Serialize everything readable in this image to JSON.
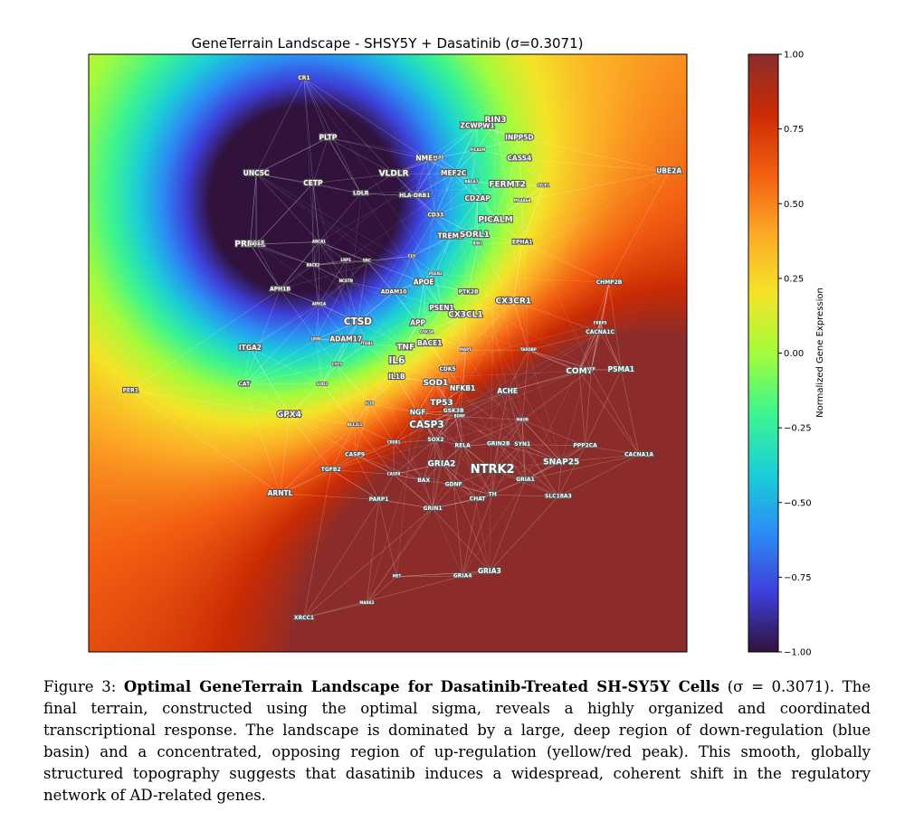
{
  "chart_data": {
    "type": "heatmap",
    "title": "GeneTerrain Landscape - SHSY5Y + Dasatinib (σ=0.3071)",
    "colorbar": {
      "label": "Normalized Gene Expression",
      "range": [
        -1.0,
        1.0
      ],
      "ticks": [
        "1.00",
        "0.75",
        "0.50",
        "0.25",
        "0.00",
        "−0.25",
        "−0.50",
        "−0.75",
        "−1.00"
      ]
    },
    "colormap": [
      "#30123b",
      "#3e3fdb",
      "#2b8df4",
      "#1bd0d6",
      "#3ef58e",
      "#a3fc3c",
      "#f5e428",
      "#fcaa26",
      "#f35e12",
      "#c92b04",
      "#8b2c2b"
    ],
    "terrain": {
      "basin_center": [
        0.37,
        0.26
      ],
      "peak_center": [
        0.82,
        0.89
      ],
      "min_value": -1.0,
      "max_value": 1.0
    },
    "genes": [
      {
        "name": "CR1",
        "x": 0.36,
        "y": 0.04,
        "size": "xs"
      },
      {
        "name": "ZCWPW1",
        "x": 0.65,
        "y": 0.12,
        "size": "s"
      },
      {
        "name": "RIN3",
        "x": 0.68,
        "y": 0.11,
        "size": "m"
      },
      {
        "name": "INPP5D",
        "x": 0.72,
        "y": 0.14,
        "size": "s"
      },
      {
        "name": "PLTP",
        "x": 0.4,
        "y": 0.14,
        "size": "s"
      },
      {
        "name": "PICALM",
        "x": 0.65,
        "y": 0.16,
        "size": "xxs"
      },
      {
        "name": "CASS4",
        "x": 0.72,
        "y": 0.175,
        "size": "s"
      },
      {
        "name": "NME8",
        "x": 0.565,
        "y": 0.175,
        "size": "s"
      },
      {
        "name": "PLD3",
        "x": 0.585,
        "y": 0.173,
        "size": "xxs"
      },
      {
        "name": "UNC5C",
        "x": 0.28,
        "y": 0.2,
        "size": "s"
      },
      {
        "name": "VLDLR",
        "x": 0.51,
        "y": 0.2,
        "size": "m"
      },
      {
        "name": "MEF2C",
        "x": 0.61,
        "y": 0.2,
        "size": "s"
      },
      {
        "name": "ABCA7",
        "x": 0.64,
        "y": 0.213,
        "size": "xxs"
      },
      {
        "name": "FERMT2",
        "x": 0.7,
        "y": 0.218,
        "size": "m"
      },
      {
        "name": "CELF1",
        "x": 0.76,
        "y": 0.22,
        "size": "xxs"
      },
      {
        "name": "UBE2A",
        "x": 0.97,
        "y": 0.196,
        "size": "s"
      },
      {
        "name": "CETP",
        "x": 0.375,
        "y": 0.216,
        "size": "s"
      },
      {
        "name": "LDLR",
        "x": 0.455,
        "y": 0.233,
        "size": "xs"
      },
      {
        "name": "HLA-DRB1",
        "x": 0.545,
        "y": 0.237,
        "size": "xs"
      },
      {
        "name": "CD2AP",
        "x": 0.65,
        "y": 0.242,
        "size": "s"
      },
      {
        "name": "MS4A6A",
        "x": 0.725,
        "y": 0.245,
        "size": "xxs"
      },
      {
        "name": "CD33",
        "x": 0.58,
        "y": 0.269,
        "size": "xs"
      },
      {
        "name": "PICALM",
        "x": 0.68,
        "y": 0.277,
        "size": "m"
      },
      {
        "name": "TREM2",
        "x": 0.605,
        "y": 0.305,
        "size": "s"
      },
      {
        "name": "SORL1",
        "x": 0.645,
        "y": 0.302,
        "size": "m"
      },
      {
        "name": "BIN1",
        "x": 0.65,
        "y": 0.317,
        "size": "xxs"
      },
      {
        "name": "EPHA1",
        "x": 0.725,
        "y": 0.315,
        "size": "xs"
      },
      {
        "name": "PRDX1",
        "x": 0.27,
        "y": 0.318,
        "size": "m"
      },
      {
        "name": "ABCA1",
        "x": 0.28,
        "y": 0.318,
        "size": "xxs"
      },
      {
        "name": "ABCA1",
        "x": 0.385,
        "y": 0.314,
        "size": "xxs"
      },
      {
        "name": "CLU",
        "x": 0.54,
        "y": 0.338,
        "size": "xxs"
      },
      {
        "name": "BACE2",
        "x": 0.375,
        "y": 0.353,
        "size": "xxs"
      },
      {
        "name": "LRP1",
        "x": 0.43,
        "y": 0.345,
        "size": "xxs"
      },
      {
        "name": "SRC",
        "x": 0.465,
        "y": 0.346,
        "size": "xxs"
      },
      {
        "name": "PSEN2",
        "x": 0.58,
        "y": 0.368,
        "size": "xxs"
      },
      {
        "name": "NCSTN",
        "x": 0.43,
        "y": 0.38,
        "size": "xxs"
      },
      {
        "name": "APOE",
        "x": 0.56,
        "y": 0.382,
        "size": "s"
      },
      {
        "name": "CHMP2B",
        "x": 0.87,
        "y": 0.382,
        "size": "xs"
      },
      {
        "name": "APH1B",
        "x": 0.32,
        "y": 0.393,
        "size": "xs"
      },
      {
        "name": "ADAM10",
        "x": 0.51,
        "y": 0.398,
        "size": "xs"
      },
      {
        "name": "PTK2B",
        "x": 0.635,
        "y": 0.398,
        "size": "xs"
      },
      {
        "name": "CX3CR1",
        "x": 0.71,
        "y": 0.413,
        "size": "m"
      },
      {
        "name": "APH1A",
        "x": 0.385,
        "y": 0.418,
        "size": "xxs"
      },
      {
        "name": "PSEN1",
        "x": 0.59,
        "y": 0.425,
        "size": "s"
      },
      {
        "name": "CX3CL1",
        "x": 0.63,
        "y": 0.436,
        "size": "m"
      },
      {
        "name": "CTSD",
        "x": 0.45,
        "y": 0.448,
        "size": "l"
      },
      {
        "name": "APP",
        "x": 0.55,
        "y": 0.45,
        "size": "s"
      },
      {
        "name": "FKBP5",
        "x": 0.855,
        "y": 0.45,
        "size": "xxs"
      },
      {
        "name": "CACNA1C",
        "x": 0.855,
        "y": 0.465,
        "size": "xs"
      },
      {
        "name": "GSK3A",
        "x": 0.565,
        "y": 0.465,
        "size": "xxs"
      },
      {
        "name": "LRP8",
        "x": 0.38,
        "y": 0.477,
        "size": "xxs"
      },
      {
        "name": "ADAM17",
        "x": 0.43,
        "y": 0.477,
        "size": "s"
      },
      {
        "name": "ITGB1",
        "x": 0.465,
        "y": 0.484,
        "size": "xxs"
      },
      {
        "name": "BACE1",
        "x": 0.57,
        "y": 0.484,
        "size": "s"
      },
      {
        "name": "ITGA2",
        "x": 0.27,
        "y": 0.492,
        "size": "s"
      },
      {
        "name": "TNF",
        "x": 0.53,
        "y": 0.49,
        "size": "m"
      },
      {
        "name": "MAPT",
        "x": 0.63,
        "y": 0.495,
        "size": "xxs"
      },
      {
        "name": "TARDBP",
        "x": 0.735,
        "y": 0.495,
        "size": "xxs"
      },
      {
        "name": "IL6",
        "x": 0.515,
        "y": 0.513,
        "size": "l"
      },
      {
        "name": "COMT",
        "x": 0.82,
        "y": 0.53,
        "size": "m"
      },
      {
        "name": "VCP",
        "x": 0.84,
        "y": 0.527,
        "size": "xxs"
      },
      {
        "name": "PSMA1",
        "x": 0.89,
        "y": 0.528,
        "size": "s"
      },
      {
        "name": "CDK5",
        "x": 0.6,
        "y": 0.527,
        "size": "xs"
      },
      {
        "name": "CYCS",
        "x": 0.415,
        "y": 0.52,
        "size": "xxs"
      },
      {
        "name": "IL1B",
        "x": 0.515,
        "y": 0.54,
        "size": "s"
      },
      {
        "name": "CAT",
        "x": 0.26,
        "y": 0.552,
        "size": "xs"
      },
      {
        "name": "SOD2",
        "x": 0.39,
        "y": 0.552,
        "size": "xxs"
      },
      {
        "name": "SOD1",
        "x": 0.58,
        "y": 0.55,
        "size": "m"
      },
      {
        "name": "NFKB1",
        "x": 0.625,
        "y": 0.56,
        "size": "s"
      },
      {
        "name": "PER1",
        "x": 0.07,
        "y": 0.563,
        "size": "xs"
      },
      {
        "name": "ACHE",
        "x": 0.7,
        "y": 0.564,
        "size": "s"
      },
      {
        "name": "TP53",
        "x": 0.59,
        "y": 0.583,
        "size": "m"
      },
      {
        "name": "IL10",
        "x": 0.47,
        "y": 0.585,
        "size": "xxs"
      },
      {
        "name": "GSK3B",
        "x": 0.61,
        "y": 0.597,
        "size": "xs"
      },
      {
        "name": "NGF",
        "x": 0.55,
        "y": 0.6,
        "size": "s"
      },
      {
        "name": "BDNF",
        "x": 0.62,
        "y": 0.606,
        "size": "xxs"
      },
      {
        "name": "GPX4",
        "x": 0.335,
        "y": 0.603,
        "size": "m"
      },
      {
        "name": "MAOB",
        "x": 0.725,
        "y": 0.612,
        "size": "xxs"
      },
      {
        "name": "BCL2L1",
        "x": 0.445,
        "y": 0.62,
        "size": "xxs"
      },
      {
        "name": "CASP3",
        "x": 0.565,
        "y": 0.62,
        "size": "l"
      },
      {
        "name": "SOX2",
        "x": 0.58,
        "y": 0.645,
        "size": "xs"
      },
      {
        "name": "CREB1",
        "x": 0.51,
        "y": 0.65,
        "size": "xxs"
      },
      {
        "name": "RELA",
        "x": 0.625,
        "y": 0.655,
        "size": "xs"
      },
      {
        "name": "GRIN2B",
        "x": 0.685,
        "y": 0.652,
        "size": "xs"
      },
      {
        "name": "SYN1",
        "x": 0.725,
        "y": 0.653,
        "size": "xs"
      },
      {
        "name": "PPP2CA",
        "x": 0.83,
        "y": 0.655,
        "size": "xs"
      },
      {
        "name": "CASP9",
        "x": 0.445,
        "y": 0.67,
        "size": "xs"
      },
      {
        "name": "CACNA1A",
        "x": 0.92,
        "y": 0.67,
        "size": "xs"
      },
      {
        "name": "SNAP25",
        "x": 0.79,
        "y": 0.682,
        "size": "m"
      },
      {
        "name": "GRIA2",
        "x": 0.59,
        "y": 0.685,
        "size": "m"
      },
      {
        "name": "NTRK2",
        "x": 0.675,
        "y": 0.695,
        "size": "xl"
      },
      {
        "name": "TGFB2",
        "x": 0.405,
        "y": 0.695,
        "size": "xs"
      },
      {
        "name": "CASP8",
        "x": 0.51,
        "y": 0.703,
        "size": "xxs"
      },
      {
        "name": "BAX",
        "x": 0.56,
        "y": 0.713,
        "size": "xs"
      },
      {
        "name": "GRIA1",
        "x": 0.73,
        "y": 0.712,
        "size": "xs"
      },
      {
        "name": "GDNF",
        "x": 0.61,
        "y": 0.72,
        "size": "xs"
      },
      {
        "name": "ARNTL",
        "x": 0.32,
        "y": 0.735,
        "size": "s"
      },
      {
        "name": "TH",
        "x": 0.675,
        "y": 0.737,
        "size": "xs"
      },
      {
        "name": "SLC18A3",
        "x": 0.785,
        "y": 0.74,
        "size": "xs"
      },
      {
        "name": "CHAT",
        "x": 0.65,
        "y": 0.744,
        "size": "xs"
      },
      {
        "name": "PARP1",
        "x": 0.485,
        "y": 0.745,
        "size": "xs"
      },
      {
        "name": "GRIN1",
        "x": 0.575,
        "y": 0.76,
        "size": "xs"
      },
      {
        "name": "GRIA3",
        "x": 0.67,
        "y": 0.865,
        "size": "s"
      },
      {
        "name": "GRIA4",
        "x": 0.625,
        "y": 0.873,
        "size": "xs"
      },
      {
        "name": "MET",
        "x": 0.515,
        "y": 0.874,
        "size": "xxs"
      },
      {
        "name": "MARK2",
        "x": 0.465,
        "y": 0.918,
        "size": "xxs"
      },
      {
        "name": "XRCC1",
        "x": 0.36,
        "y": 0.943,
        "size": "xs"
      }
    ]
  },
  "caption": {
    "label": "Figure 3:",
    "bold_title": "Optimal GeneTerrain Landscape for Dasatinib-Treated SH-SY5Y Cells",
    "sigma": "(σ = 0.3071).",
    "body": "The final terrain, constructed using the optimal sigma, reveals a highly organized and coordinated transcriptional response. The landscape is dominated by a large, deep region of down-regulation (blue basin) and a concentrated, opposing region of up-regulation (yellow/red peak). This smooth, globally structured topography suggests that dasatinib induces a widespread, coherent shift in the regulatory network of AD-related genes."
  }
}
